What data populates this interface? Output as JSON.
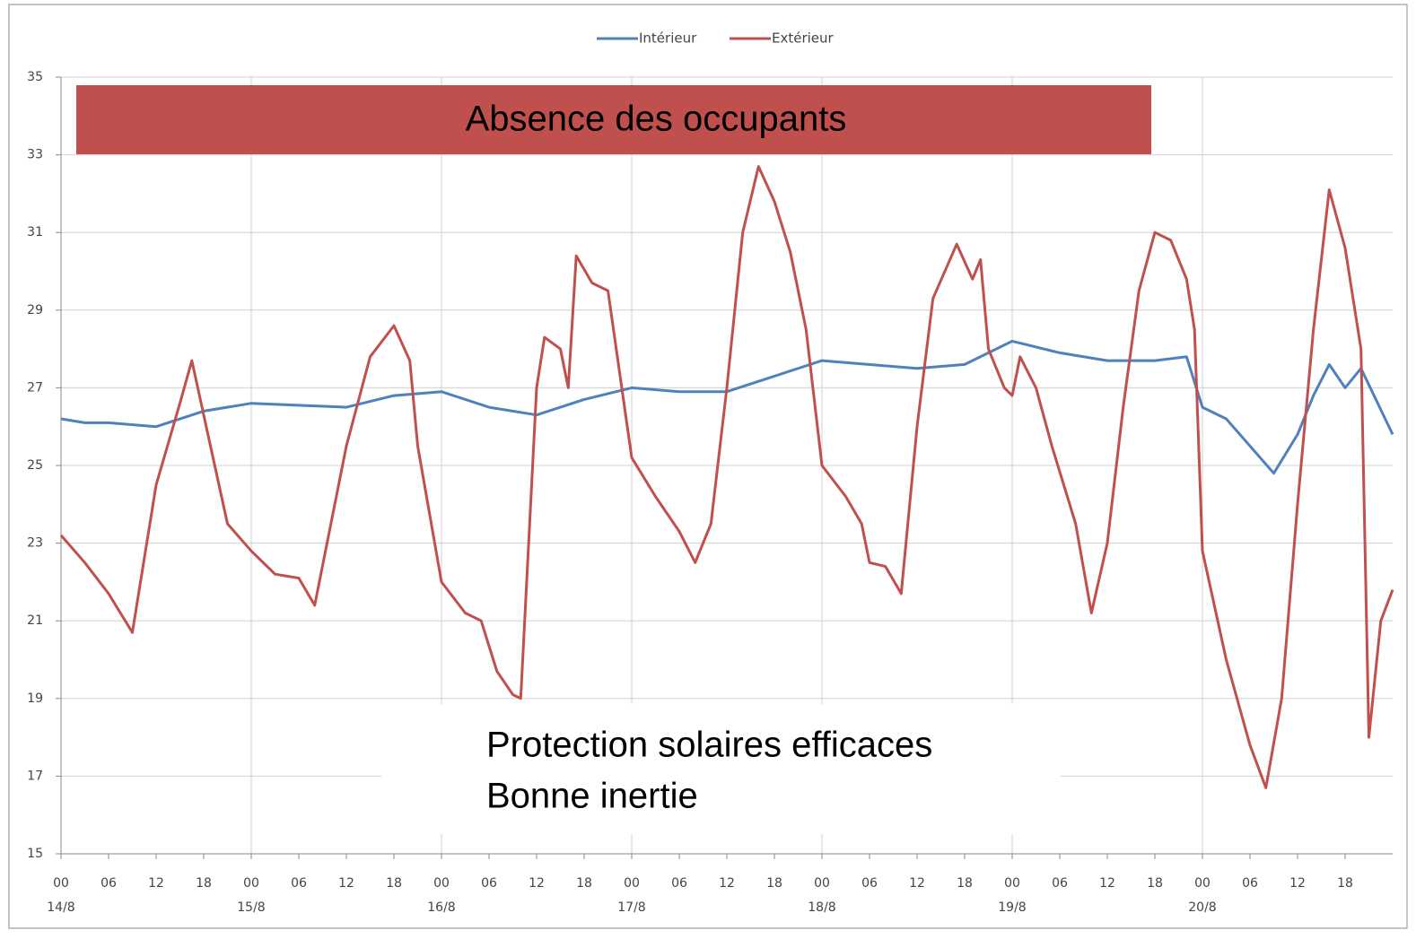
{
  "chart_data": {
    "type": "line",
    "series": [
      {
        "name": "Intérieur",
        "color": "#4f81bd",
        "x": [
          0,
          3,
          6,
          12,
          18,
          24,
          36,
          42,
          48,
          54,
          60,
          66,
          72,
          78,
          84,
          90,
          96,
          108,
          114,
          120,
          126,
          132,
          138,
          142,
          144,
          147,
          150,
          153,
          156,
          158,
          160,
          162,
          164,
          168
        ],
        "values": [
          26.2,
          26.1,
          26.1,
          26,
          26.4,
          26.6,
          26.5,
          26.8,
          26.9,
          26.5,
          26.3,
          26.7,
          27,
          26.9,
          26.9,
          27.3,
          27.7,
          27.5,
          27.6,
          28.2,
          27.9,
          27.7,
          27.7,
          27.8,
          26.5,
          26.2,
          25.5,
          24.8,
          25.8,
          26.8,
          27.6,
          27,
          27.5,
          25.8
        ]
      },
      {
        "name": "Extérieur",
        "color": "#c0504d",
        "x": [
          0,
          3,
          6,
          9,
          12,
          15,
          16.5,
          18,
          21,
          24,
          27,
          30,
          32,
          36,
          39,
          42,
          44,
          45,
          48,
          51,
          53,
          55,
          57,
          58,
          60,
          61,
          63,
          64,
          65,
          67,
          69,
          72,
          75,
          78,
          80,
          82,
          84,
          86,
          88,
          90,
          92,
          94,
          96,
          99,
          101,
          102,
          104,
          106,
          108,
          110,
          113,
          115,
          116,
          117,
          119,
          120,
          121,
          123,
          125,
          128,
          130,
          132,
          134,
          136,
          138,
          140,
          142,
          143,
          144,
          147,
          150,
          152,
          154,
          156,
          158,
          160,
          162,
          164,
          165,
          166.5,
          168
        ],
        "values": [
          23.2,
          22.5,
          21.7,
          20.7,
          24.5,
          26.6,
          27.7,
          26.3,
          23.5,
          22.8,
          22.2,
          22.1,
          21.4,
          25.5,
          27.8,
          28.6,
          27.7,
          25.5,
          22,
          21.2,
          21,
          19.7,
          19.1,
          19,
          27,
          28.3,
          28,
          27,
          30.4,
          29.7,
          29.5,
          25.2,
          24.2,
          23.3,
          22.5,
          23.5,
          27,
          31,
          32.7,
          31.8,
          30.5,
          28.5,
          25,
          24.2,
          23.5,
          22.5,
          22.4,
          21.7,
          26,
          29.3,
          30.7,
          29.8,
          30.3,
          28,
          27,
          26.8,
          27.8,
          27,
          25.5,
          23.5,
          21.2,
          23,
          26.5,
          29.5,
          31,
          30.8,
          29.8,
          28.5,
          22.8,
          20,
          17.8,
          16.7,
          19,
          24,
          28.5,
          32.1,
          30.6,
          28,
          18,
          21,
          21.8
        ]
      }
    ],
    "xlim": [
      0,
      168
    ],
    "xticks": [
      {
        "value": 0,
        "label": "00"
      },
      {
        "value": 6,
        "label": "06"
      },
      {
        "value": 12,
        "label": "12"
      },
      {
        "value": 18,
        "label": "18"
      },
      {
        "value": 24,
        "label": "00"
      },
      {
        "value": 30,
        "label": "06"
      },
      {
        "value": 36,
        "label": "12"
      },
      {
        "value": 42,
        "label": "18"
      },
      {
        "value": 48,
        "label": "00"
      },
      {
        "value": 54,
        "label": "06"
      },
      {
        "value": 60,
        "label": "12"
      },
      {
        "value": 66,
        "label": "18"
      },
      {
        "value": 72,
        "label": "00"
      },
      {
        "value": 78,
        "label": "06"
      },
      {
        "value": 84,
        "label": "12"
      },
      {
        "value": 90,
        "label": "18"
      },
      {
        "value": 96,
        "label": "00"
      },
      {
        "value": 102,
        "label": "06"
      },
      {
        "value": 108,
        "label": "12"
      },
      {
        "value": 114,
        "label": "18"
      },
      {
        "value": 120,
        "label": "00"
      },
      {
        "value": 126,
        "label": "06"
      },
      {
        "value": 132,
        "label": "12"
      },
      {
        "value": 138,
        "label": "18"
      },
      {
        "value": 144,
        "label": "00"
      },
      {
        "value": 150,
        "label": "06"
      },
      {
        "value": 156,
        "label": "12"
      },
      {
        "value": 162,
        "label": "18"
      }
    ],
    "x_day_labels": [
      {
        "value": 0,
        "label": "14/8"
      },
      {
        "value": 24,
        "label": "15/8"
      },
      {
        "value": 48,
        "label": "16/8"
      },
      {
        "value": 72,
        "label": "17/8"
      },
      {
        "value": 96,
        "label": "18/8"
      },
      {
        "value": 120,
        "label": "19/8"
      },
      {
        "value": 144,
        "label": "20/8"
      }
    ],
    "ylim": [
      15,
      35
    ],
    "yticks": [
      15,
      17,
      19,
      21,
      23,
      25,
      27,
      29,
      31,
      33,
      35
    ],
    "grid": true,
    "legend": "top",
    "annotations": {
      "banner": "Absence des occupants",
      "banner_color": "#c0504d",
      "notes": [
        "Protection solaires efficaces",
        "Bonne inertie"
      ]
    }
  }
}
